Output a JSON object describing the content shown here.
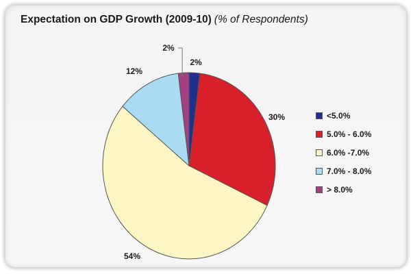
{
  "chart_data": {
    "type": "pie",
    "title": "Expectation on GDP Growth (2009-10)",
    "subtitle": "(% of Respondents)",
    "legend_position": "right",
    "slices": [
      {
        "label": "<5.0%",
        "value": 2,
        "value_label": "2%",
        "color": "#1f2f8a"
      },
      {
        "label": "5.0% - 6.0%",
        "value": 30,
        "value_label": "30%",
        "color": "#d8202a"
      },
      {
        "label": "6.0% -7.0%",
        "value": 54,
        "value_label": "54%",
        "color": "#fbf6c4"
      },
      {
        "label": "7.0% - 8.0%",
        "value": 12,
        "value_label": "12%",
        "color": "#a9dcf2"
      },
      {
        "label": "> 8.0%",
        "value": 2,
        "value_label": "2%",
        "color": "#a43e82"
      }
    ]
  }
}
